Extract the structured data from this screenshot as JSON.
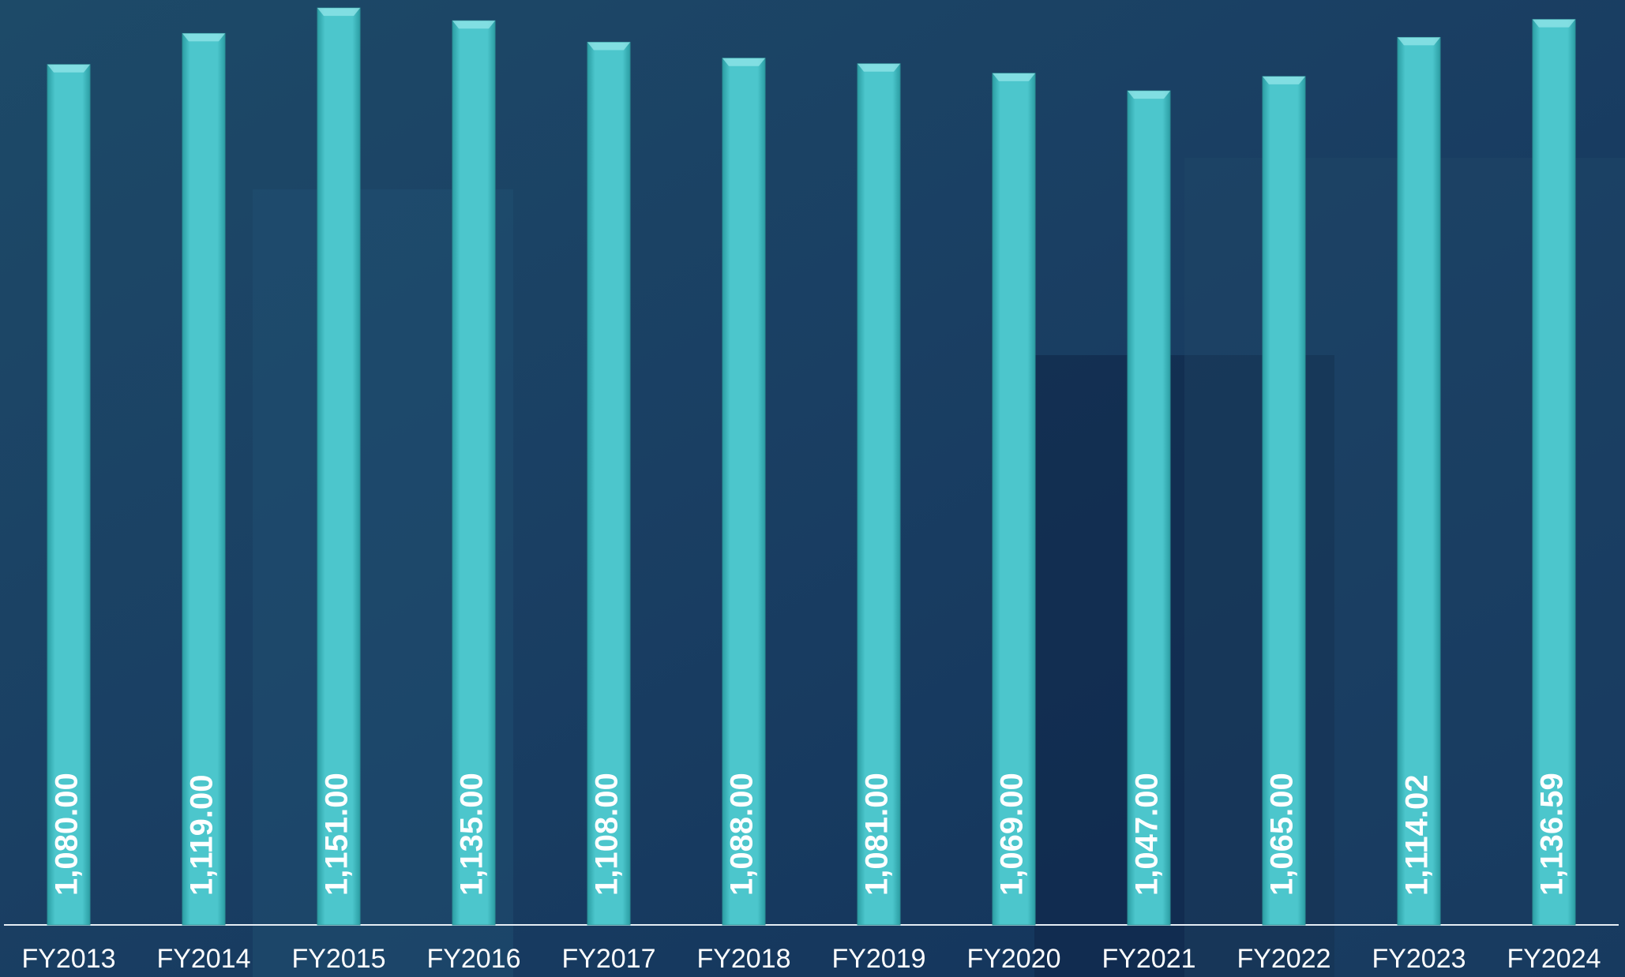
{
  "chart_data": {
    "type": "bar",
    "categories": [
      "FY2013",
      "FY2014",
      "FY2015",
      "FY2016",
      "FY2017",
      "FY2018",
      "FY2019",
      "FY2020",
      "FY2021",
      "FY2022",
      "FY2023",
      "FY2024"
    ],
    "values": [
      1080,
      1119,
      1151,
      1135,
      1108,
      1088,
      1081,
      1069,
      1047,
      1065,
      1114.02,
      1136.59
    ],
    "value_labels": [
      "1,080.00",
      "1,119.00",
      "1,151.00",
      "1,135.00",
      "1,108.00",
      "1,088.00",
      "1,081.00",
      "1,069.00",
      "1,047.00",
      "1,065.00",
      "1,114.02",
      "1,136.59"
    ],
    "color": "#4cc6cc",
    "ylim": [
      0,
      1161
    ]
  }
}
